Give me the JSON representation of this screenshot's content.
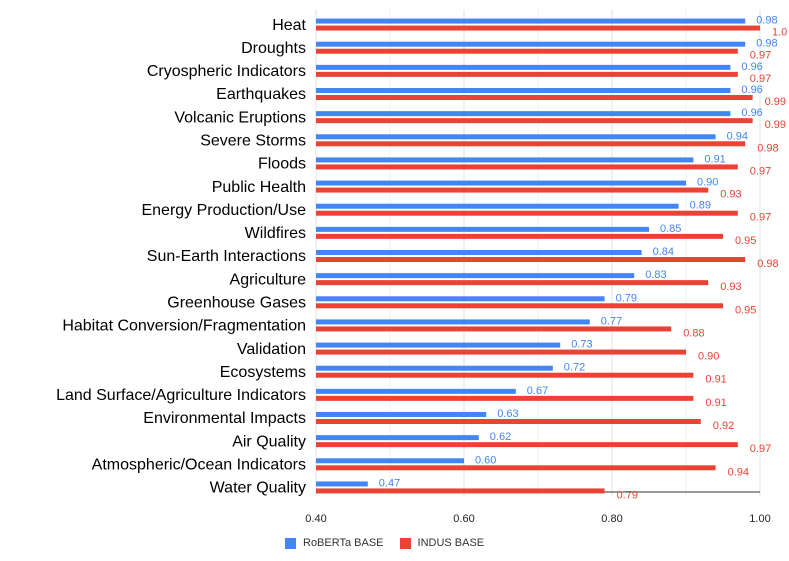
{
  "chart_data": {
    "type": "bar",
    "orientation": "horizontal",
    "title": "",
    "xlabel": "",
    "ylabel": "",
    "xlim": [
      0.4,
      1.0
    ],
    "xticks": [
      "0.40",
      "0.60",
      "0.80",
      "1.00"
    ],
    "tick_values": [
      0.4,
      0.6,
      0.8,
      1.0
    ],
    "grid": true,
    "legend_position": "bottom",
    "categories": [
      "Heat",
      "Droughts",
      "Cryospheric Indicators",
      "Earthquakes",
      "Volcanic Eruptions",
      "Severe Storms",
      "Floods",
      "Public Health",
      "Energy Production/Use",
      "Wildfires",
      "Sun-Earth Interactions",
      "Agriculture",
      "Greenhouse Gases",
      "Habitat Conversion/Fragmentation",
      "Validation",
      "Ecosystems",
      "Land Surface/Agriculture Indicators",
      "Environmental Impacts",
      "Air Quality",
      "Atmospheric/Ocean Indicators",
      "Water Quality"
    ],
    "series": [
      {
        "name": "RoBERTa BASE",
        "color": "#4285f4",
        "values": [
          0.98,
          0.98,
          0.96,
          0.96,
          0.96,
          0.94,
          0.91,
          0.9,
          0.89,
          0.85,
          0.84,
          0.83,
          0.79,
          0.77,
          0.73,
          0.72,
          0.67,
          0.63,
          0.62,
          0.6,
          0.47
        ],
        "labels": [
          "0.98",
          "0.98",
          "0.96",
          "0.96",
          "0.96",
          "0.94",
          "0.91",
          "0.90",
          "0.89",
          "0.85",
          "0.84",
          "0.83",
          "0.79",
          "0.77",
          "0.73",
          "0.72",
          "0.67",
          "0.63",
          "0.62",
          "0.60",
          "0.47"
        ]
      },
      {
        "name": "INDUS BASE",
        "color": "#ea4335",
        "values": [
          1.0,
          0.97,
          0.97,
          0.99,
          0.99,
          0.98,
          0.97,
          0.93,
          0.97,
          0.95,
          0.98,
          0.93,
          0.95,
          0.88,
          0.9,
          0.91,
          0.91,
          0.92,
          0.97,
          0.94,
          0.79
        ],
        "labels": [
          "1.0",
          "0.97",
          "0.97",
          "0.99",
          "0.99",
          "0.98",
          "0.97",
          "0.93",
          "0.97",
          "0.95",
          "0.98",
          "0.93",
          "0.95",
          "0.88",
          "0.90",
          "0.91",
          "0.91",
          "0.92",
          "0.97",
          "0.94",
          "0.79"
        ]
      }
    ]
  }
}
